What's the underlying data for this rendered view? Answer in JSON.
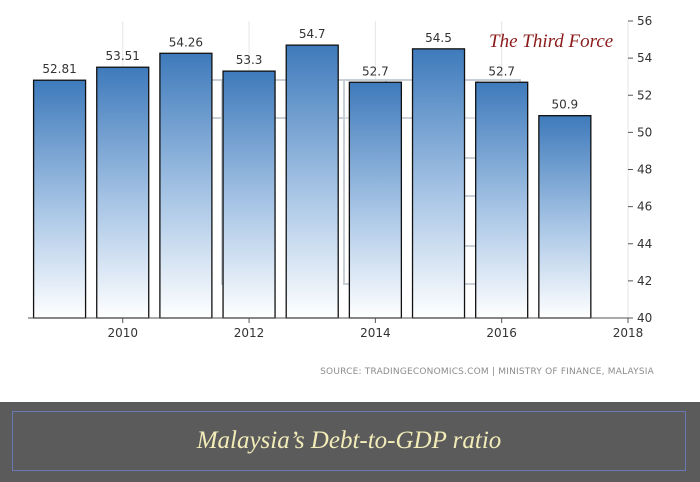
{
  "chart_data": {
    "type": "bar",
    "values": [
      52.81,
      53.51,
      54.26,
      53.3,
      54.7,
      52.7,
      54.5,
      52.7,
      50.9
    ],
    "x": [
      2009,
      2010,
      2011,
      2012,
      2013,
      2014,
      2015,
      2016,
      2017
    ],
    "x_ticks": [
      "2010",
      "2012",
      "2014",
      "2016",
      "2018"
    ],
    "data_labels": [
      "52.81",
      "53.51",
      "54.26",
      "53.3",
      "54.7",
      "52.7",
      "54.5",
      "52.7",
      "50.9"
    ],
    "ylim": [
      40,
      56
    ],
    "y_ticks": [
      "40",
      "42",
      "44",
      "46",
      "48",
      "50",
      "52",
      "54",
      "56"
    ],
    "y_axis_position": "right",
    "grid": "vertical",
    "bar_gradient": [
      "#3e7abb",
      "#ffffff"
    ],
    "title": "",
    "xlabel": "",
    "ylabel": ""
  },
  "watermark": "The Third Force",
  "source": "SOURCE: TRADINGECONOMICS.COM | MINISTRY OF FINANCE, MALAYSIA",
  "caption": "Malaysia’s Debt-to-GDP ratio",
  "colors": {
    "brand": "#8b1a1a",
    "banner": "#5b5b5b",
    "caption": "#f2ecb9",
    "frame": "#6b78b6"
  }
}
